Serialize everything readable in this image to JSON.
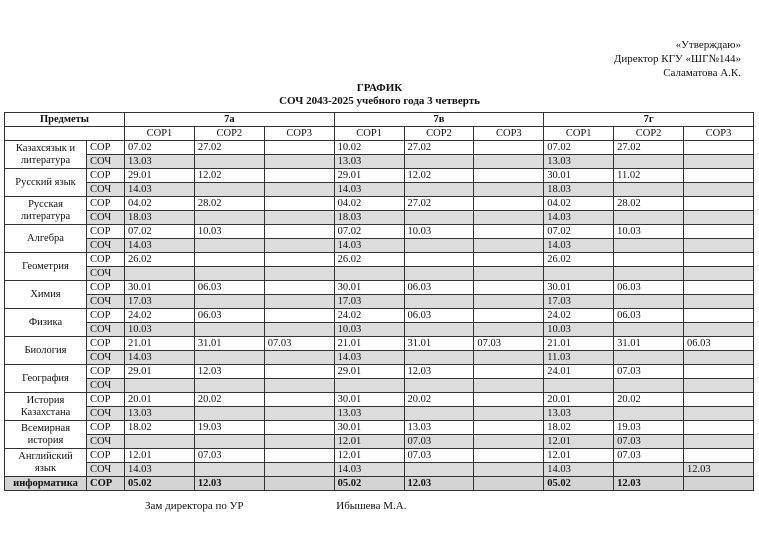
{
  "header": {
    "approval": [
      "«Утверждаю»",
      "Директор КГУ «ШГ№144»",
      "Саламатова А.К."
    ],
    "title": "ГРАФИК",
    "subtitle": "СОЧ 2043-2025 учебного года 3 четверть"
  },
  "table": {
    "subject_header": "Предметы",
    "classes": [
      "7а",
      "7в",
      "7г"
    ],
    "columns": [
      "СОР1",
      "СОР2",
      "СОР3"
    ],
    "row_types": [
      "СОР",
      "СОЧ"
    ],
    "rows": [
      {
        "subject": "Казахсязык и литература",
        "sor": [
          "07.02",
          "27.02",
          null,
          "10.02",
          "27.02",
          null,
          "07.02",
          "27.02",
          null
        ],
        "soch": [
          "13.03",
          null,
          null,
          "13.03",
          null,
          null,
          "13.03",
          null,
          null
        ]
      },
      {
        "subject": "Русский язык",
        "sor": [
          "29.01",
          "12.02",
          null,
          "29.01",
          "12.02",
          null,
          "30.01",
          "11.02",
          null
        ],
        "soch": [
          "14.03",
          null,
          null,
          "14.03",
          null,
          null,
          "18.03",
          null,
          null
        ]
      },
      {
        "subject": "Русская литература",
        "sor": [
          "04.02",
          "28.02",
          null,
          "04.02",
          "27.02",
          null,
          "04.02",
          "28.02",
          null
        ],
        "soch": [
          "18.03",
          null,
          null,
          "18.03",
          null,
          null,
          "14.03",
          null,
          null
        ]
      },
      {
        "subject": "Алгебра",
        "sor": [
          "07.02",
          "10.03",
          null,
          "07.02",
          "10.03",
          null,
          "07.02",
          "10.03",
          null
        ],
        "soch": [
          "14.03",
          null,
          null,
          "14.03",
          null,
          null,
          "14.03",
          null,
          null
        ]
      },
      {
        "subject": "Геометрия",
        "sor": [
          "26.02",
          null,
          null,
          "26.02",
          null,
          null,
          "26.02",
          null,
          null
        ],
        "soch": [
          null,
          null,
          null,
          null,
          null,
          null,
          null,
          null,
          null
        ]
      },
      {
        "subject": "Химия",
        "sor": [
          "30.01",
          "06.03",
          null,
          "30.01",
          "06.03",
          null,
          "30.01",
          "06.03",
          null
        ],
        "soch": [
          "17.03",
          null,
          null,
          "17.03",
          null,
          null,
          "17.03",
          null,
          null
        ]
      },
      {
        "subject": "Физика",
        "sor": [
          "24.02",
          "06.03",
          null,
          "24.02",
          "06.03",
          null,
          "24.02",
          "06.03",
          null
        ],
        "soch": [
          "10.03",
          null,
          null,
          "10.03",
          null,
          null,
          "10.03",
          null,
          null
        ]
      },
      {
        "subject": "Биология",
        "sor": [
          "21.01",
          "31.01",
          "07.03",
          "21.01",
          "31.01",
          "07.03",
          "21.01",
          "31.01",
          "06.03"
        ],
        "soch": [
          "14.03",
          null,
          null,
          "14.03",
          null,
          null,
          "11.03",
          null,
          null
        ]
      },
      {
        "subject": "География",
        "sor": [
          "29.01",
          "12.03",
          null,
          "29.01",
          "12.03",
          null,
          "24.01",
          "07.03",
          null
        ],
        "soch": [
          null,
          null,
          null,
          null,
          null,
          null,
          null,
          null,
          null
        ]
      },
      {
        "subject": "История Казахстана",
        "sor": [
          "20.01",
          "20.02",
          null,
          "30.01",
          "20.02",
          null,
          "20.01",
          "20.02",
          null
        ],
        "soch": [
          "13.03",
          null,
          null,
          "13.03",
          null,
          null,
          "13.03",
          null,
          null
        ]
      },
      {
        "subject": "Всемирная история",
        "sor": [
          "18.02",
          "19.03",
          null,
          "30.01",
          "13.03",
          null,
          "18.02",
          "19.03",
          null
        ],
        "soch": [
          null,
          null,
          null,
          "12.01",
          "07.03",
          null,
          "12.01",
          "07.03",
          null
        ]
      },
      {
        "subject": "Английский язык",
        "sor": [
          "12.01",
          "07.03",
          null,
          "12.01",
          "07.03",
          null,
          "12.01",
          "07.03",
          null
        ],
        "soch": [
          "14.03",
          null,
          null,
          "14.03",
          null,
          null,
          "14.03",
          null,
          "12.03"
        ]
      },
      {
        "subject": "информатика",
        "sor": [
          "05.02",
          "12.03",
          null,
          "05.02",
          "12.03",
          null,
          "05.02",
          "12.03",
          null
        ]
      }
    ]
  },
  "footer": {
    "position": "Зам директора по УР",
    "name": "Ибышева М.А."
  }
}
